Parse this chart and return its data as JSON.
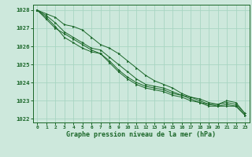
{
  "xlabel": "Graphe pression niveau de la mer (hPa)",
  "bg_color": "#cde8dc",
  "grid_color": "#a8d5c2",
  "line_color": "#1a6628",
  "ylim": [
    1021.8,
    1028.3
  ],
  "xlim": [
    -0.5,
    23.5
  ],
  "yticks": [
    1022,
    1023,
    1024,
    1025,
    1026,
    1027,
    1028
  ],
  "xticks": [
    0,
    1,
    2,
    3,
    4,
    5,
    6,
    7,
    8,
    9,
    10,
    11,
    12,
    13,
    14,
    15,
    16,
    17,
    18,
    19,
    20,
    21,
    22,
    23
  ],
  "series": [
    [
      1028.0,
      1027.8,
      1027.6,
      1027.2,
      1027.1,
      1026.9,
      1026.5,
      1026.1,
      1025.9,
      1025.6,
      1025.2,
      1024.8,
      1024.4,
      1024.1,
      1023.9,
      1023.7,
      1023.4,
      1023.2,
      1023.1,
      1022.9,
      1022.8,
      1023.0,
      1022.9,
      1022.3
    ],
    [
      1028.0,
      1027.7,
      1027.3,
      1026.8,
      1026.5,
      1026.2,
      1025.9,
      1025.8,
      1025.4,
      1025.0,
      1024.6,
      1024.2,
      1023.9,
      1023.8,
      1023.7,
      1023.5,
      1023.3,
      1023.2,
      1023.0,
      1022.8,
      1022.8,
      1022.9,
      1022.8,
      1022.3
    ],
    [
      1028.0,
      1027.6,
      1027.1,
      1026.5,
      1026.2,
      1025.9,
      1025.7,
      1025.6,
      1025.2,
      1024.7,
      1024.3,
      1024.0,
      1023.8,
      1023.7,
      1023.6,
      1023.4,
      1023.3,
      1023.1,
      1022.9,
      1022.8,
      1022.7,
      1022.8,
      1022.7,
      1022.2
    ],
    [
      1028.0,
      1027.5,
      1027.0,
      1026.7,
      1026.4,
      1026.1,
      1025.8,
      1025.6,
      1025.1,
      1024.6,
      1024.2,
      1023.9,
      1023.7,
      1023.6,
      1023.5,
      1023.3,
      1023.2,
      1023.0,
      1022.9,
      1022.7,
      1022.7,
      1022.7,
      1022.7,
      1022.2
    ]
  ]
}
